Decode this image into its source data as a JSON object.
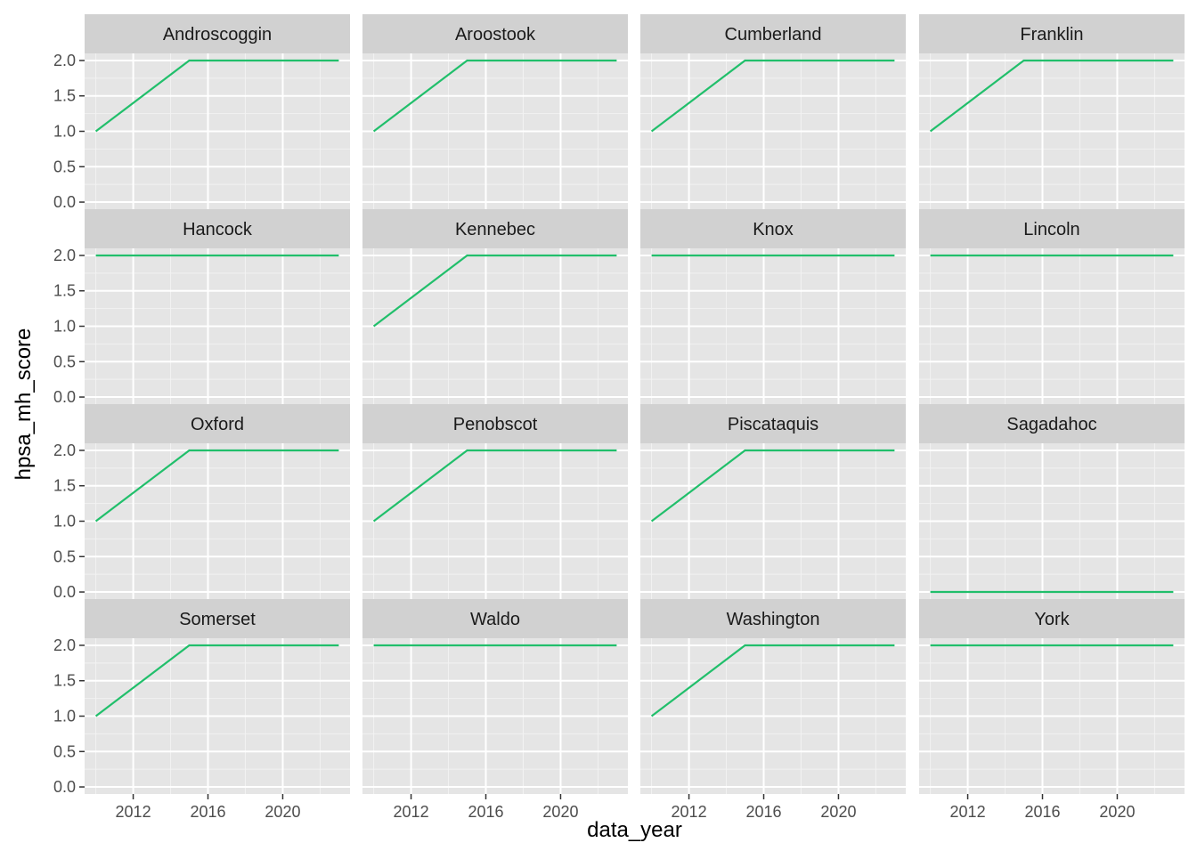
{
  "chart_data": {
    "type": "line",
    "facet": true,
    "xlabel": "data_year",
    "ylabel": "hpsa_mh_score",
    "xlim": [
      2009.4,
      2023.6
    ],
    "ylim": [
      -0.1,
      2.1
    ],
    "x_ticks": [
      2012,
      2016,
      2020
    ],
    "x_tick_labels": [
      "2012",
      "2016",
      "2020"
    ],
    "y_ticks": [
      0,
      0.5,
      1,
      1.5,
      2
    ],
    "y_tick_labels": [
      "0.0",
      "0.5",
      "1.0",
      "1.5",
      "2.0"
    ],
    "grid": true,
    "legend": "none",
    "line_color": "#21BF6B",
    "panel_bg": "#E5E5E5",
    "strip_bg": "#D1D1D1",
    "panels": [
      {
        "county": "Androscoggin",
        "x": [
          2010,
          2015,
          2023
        ],
        "y": [
          1,
          2,
          2
        ]
      },
      {
        "county": "Aroostook",
        "x": [
          2010,
          2015,
          2023
        ],
        "y": [
          1,
          2,
          2
        ]
      },
      {
        "county": "Cumberland",
        "x": [
          2010,
          2015,
          2023
        ],
        "y": [
          1,
          2,
          2
        ]
      },
      {
        "county": "Franklin",
        "x": [
          2010,
          2015,
          2023
        ],
        "y": [
          1,
          2,
          2
        ]
      },
      {
        "county": "Hancock",
        "x": [
          2010,
          2023
        ],
        "y": [
          2,
          2
        ]
      },
      {
        "county": "Kennebec",
        "x": [
          2010,
          2015,
          2023
        ],
        "y": [
          1,
          2,
          2
        ]
      },
      {
        "county": "Knox",
        "x": [
          2010,
          2023
        ],
        "y": [
          2,
          2
        ]
      },
      {
        "county": "Lincoln",
        "x": [
          2010,
          2023
        ],
        "y": [
          2,
          2
        ]
      },
      {
        "county": "Oxford",
        "x": [
          2010,
          2015,
          2023
        ],
        "y": [
          1,
          2,
          2
        ]
      },
      {
        "county": "Penobscot",
        "x": [
          2010,
          2015,
          2023
        ],
        "y": [
          1,
          2,
          2
        ]
      },
      {
        "county": "Piscataquis",
        "x": [
          2010,
          2015,
          2023
        ],
        "y": [
          1,
          2,
          2
        ]
      },
      {
        "county": "Sagadahoc",
        "x": [
          2010,
          2023
        ],
        "y": [
          0,
          0
        ]
      },
      {
        "county": "Somerset",
        "x": [
          2010,
          2015,
          2023
        ],
        "y": [
          1,
          2,
          2
        ]
      },
      {
        "county": "Waldo",
        "x": [
          2010,
          2023
        ],
        "y": [
          2,
          2
        ]
      },
      {
        "county": "Washington",
        "x": [
          2010,
          2015,
          2023
        ],
        "y": [
          1,
          2,
          2
        ]
      },
      {
        "county": "York",
        "x": [
          2010,
          2023
        ],
        "y": [
          2,
          2
        ]
      }
    ]
  }
}
